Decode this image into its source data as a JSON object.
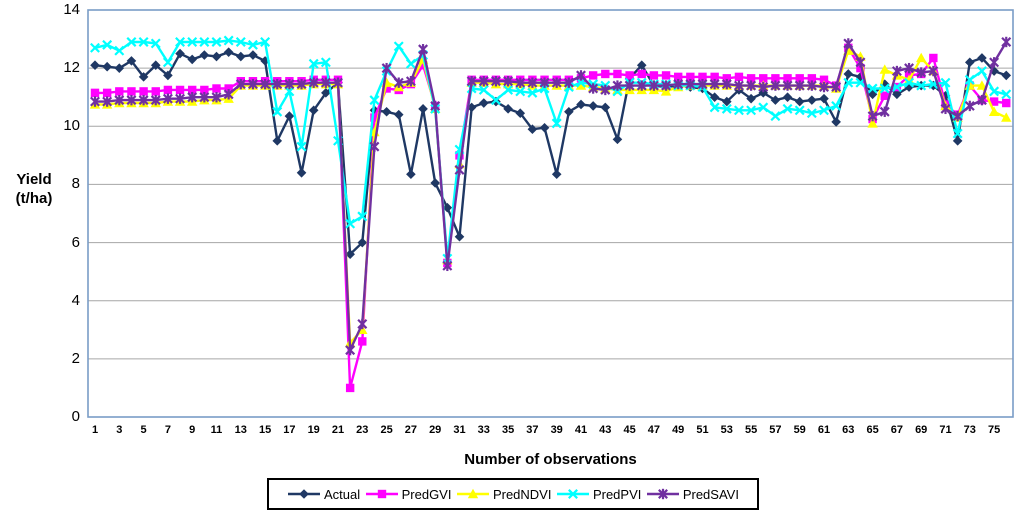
{
  "y_axis": {
    "label_line1": "Yield",
    "label_line2": "(t/ha)",
    "tick_labels": [
      "0",
      "2",
      "4",
      "6",
      "8",
      "10",
      "12",
      "14"
    ],
    "range": [
      0,
      14
    ]
  },
  "x_axis": {
    "title": "Number of observations",
    "tick_labels": [
      "1",
      "3",
      "5",
      "7",
      "9",
      "11",
      "13",
      "15",
      "17",
      "19",
      "21",
      "23",
      "25",
      "27",
      "29",
      "31",
      "33",
      "35",
      "37",
      "39",
      "41",
      "43",
      "45",
      "47",
      "49",
      "51",
      "53",
      "55",
      "57",
      "59",
      "61",
      "63",
      "65",
      "67",
      "69",
      "71",
      "73",
      "75"
    ]
  },
  "legend": {
    "items": [
      {
        "label": "Actual",
        "color": "#1F3864",
        "marker": "diamond"
      },
      {
        "label": "PredGVI",
        "color": "#FF00FF",
        "marker": "square"
      },
      {
        "label": "PredNDVI",
        "color": "#FFFF00",
        "marker": "triangle"
      },
      {
        "label": "PredPVI",
        "color": "#00FFFF",
        "marker": "x"
      },
      {
        "label": "PredSAVI",
        "color": "#7030A0",
        "marker": "star"
      }
    ]
  },
  "colors": {
    "plot_border": "#7A9CC6",
    "gridline": "#A6A6A6",
    "background": "#FFFFFF"
  },
  "chart_data": {
    "type": "line",
    "title": "",
    "xlabel": "Number of observations",
    "ylabel": "Yield (t/ha)",
    "ylim": [
      0,
      14
    ],
    "x": [
      1,
      2,
      3,
      4,
      5,
      6,
      7,
      8,
      9,
      10,
      11,
      12,
      13,
      14,
      15,
      16,
      17,
      18,
      19,
      20,
      21,
      22,
      23,
      24,
      25,
      26,
      27,
      28,
      29,
      30,
      31,
      32,
      33,
      34,
      35,
      36,
      37,
      38,
      39,
      40,
      41,
      42,
      43,
      44,
      45,
      46,
      47,
      48,
      49,
      50,
      51,
      52,
      53,
      54,
      55,
      56,
      57,
      58,
      59,
      60,
      61,
      62,
      63,
      64,
      65,
      66,
      67,
      68,
      69,
      70,
      71,
      72,
      73,
      74,
      75,
      76
    ],
    "grid": true,
    "legend_position": "bottom",
    "series": [
      {
        "name": "Actual",
        "color": "#1F3864",
        "marker": "diamond",
        "values": [
          12.1,
          12.05,
          12.0,
          12.25,
          11.7,
          12.1,
          11.75,
          12.5,
          12.3,
          12.45,
          12.4,
          12.55,
          12.4,
          12.45,
          12.25,
          9.5,
          10.35,
          8.4,
          10.55,
          11.15,
          11.5,
          5.6,
          6.0,
          10.55,
          10.5,
          10.4,
          8.35,
          10.6,
          8.05,
          7.2,
          6.2,
          10.65,
          10.8,
          10.85,
          10.6,
          10.45,
          9.9,
          9.95,
          8.35,
          10.5,
          10.75,
          10.7,
          10.65,
          9.55,
          11.65,
          12.1,
          11.4,
          11.35,
          11.4,
          11.35,
          11.3,
          11.0,
          10.85,
          11.25,
          10.95,
          11.15,
          10.9,
          11.0,
          10.85,
          10.9,
          10.95,
          10.15,
          11.8,
          11.7,
          11.1,
          11.45,
          11.1,
          11.35,
          11.4,
          11.4,
          11.05,
          9.5,
          12.2,
          12.35,
          11.9,
          11.75
        ]
      },
      {
        "name": "PredGVI",
        "color": "#FF00FF",
        "marker": "square",
        "values": [
          11.15,
          11.15,
          11.2,
          11.2,
          11.2,
          11.2,
          11.25,
          11.25,
          11.25,
          11.25,
          11.3,
          11.3,
          11.55,
          11.55,
          11.55,
          11.55,
          11.55,
          11.55,
          11.6,
          11.6,
          11.6,
          1.0,
          2.6,
          10.3,
          11.3,
          11.25,
          11.45,
          12.1,
          10.7,
          5.3,
          9.0,
          11.6,
          11.6,
          11.6,
          11.6,
          11.6,
          11.6,
          11.6,
          11.6,
          11.6,
          11.65,
          11.75,
          11.8,
          11.8,
          11.75,
          11.8,
          11.75,
          11.75,
          11.7,
          11.7,
          11.7,
          11.7,
          11.65,
          11.7,
          11.65,
          11.65,
          11.65,
          11.65,
          11.65,
          11.65,
          11.6,
          11.4,
          12.7,
          12.0,
          10.25,
          11.05,
          11.35,
          11.75,
          11.8,
          12.35,
          10.75,
          10.4,
          11.4,
          10.9,
          10.85,
          10.8
        ]
      },
      {
        "name": "PredNDVI",
        "color": "#FFFF00",
        "marker": "triangle",
        "values": [
          10.75,
          10.75,
          10.8,
          10.8,
          10.8,
          10.8,
          10.85,
          10.85,
          10.85,
          10.9,
          10.9,
          10.95,
          11.4,
          11.4,
          11.4,
          11.4,
          11.4,
          11.4,
          11.45,
          11.45,
          11.45,
          2.55,
          3.0,
          9.8,
          11.5,
          11.35,
          11.5,
          12.3,
          10.6,
          5.4,
          8.7,
          11.5,
          11.5,
          11.45,
          11.45,
          11.45,
          11.4,
          11.4,
          11.4,
          11.4,
          11.4,
          11.35,
          11.3,
          11.25,
          11.25,
          11.25,
          11.25,
          11.2,
          11.35,
          11.4,
          11.4,
          11.4,
          11.4,
          11.4,
          11.4,
          11.4,
          11.4,
          11.4,
          11.4,
          11.4,
          11.4,
          11.3,
          12.6,
          12.4,
          10.1,
          11.95,
          11.75,
          11.6,
          12.35,
          11.9,
          10.7,
          10.3,
          11.4,
          11.4,
          10.5,
          10.3
        ]
      },
      {
        "name": "PredPVI",
        "color": "#00FFFF",
        "marker": "x",
        "values": [
          12.7,
          12.8,
          12.6,
          12.9,
          12.9,
          12.85,
          12.2,
          12.9,
          12.9,
          12.9,
          12.9,
          12.95,
          12.9,
          12.8,
          12.9,
          10.5,
          11.2,
          9.3,
          12.15,
          12.2,
          9.5,
          6.65,
          6.9,
          10.9,
          11.9,
          12.75,
          12.15,
          12.45,
          10.6,
          5.45,
          9.2,
          11.3,
          11.25,
          10.9,
          11.25,
          11.2,
          11.15,
          11.3,
          10.1,
          11.35,
          11.5,
          11.45,
          11.4,
          11.2,
          11.5,
          11.5,
          11.45,
          11.45,
          11.4,
          11.4,
          11.35,
          10.65,
          10.6,
          10.55,
          10.55,
          10.65,
          10.35,
          10.6,
          10.55,
          10.45,
          10.55,
          10.7,
          11.5,
          11.5,
          11.3,
          11.3,
          11.35,
          11.5,
          11.4,
          11.45,
          11.5,
          9.75,
          11.6,
          11.9,
          11.2,
          11.1
        ]
      },
      {
        "name": "PredSAVI",
        "color": "#7030A0",
        "marker": "star",
        "values": [
          10.85,
          10.85,
          10.9,
          10.9,
          10.9,
          10.9,
          10.95,
          10.95,
          11.0,
          11.0,
          11.0,
          11.1,
          11.45,
          11.45,
          11.45,
          11.45,
          11.45,
          11.45,
          11.5,
          11.5,
          11.5,
          2.3,
          3.2,
          9.3,
          12.0,
          11.5,
          11.55,
          12.65,
          10.7,
          5.2,
          8.5,
          11.55,
          11.55,
          11.55,
          11.55,
          11.5,
          11.5,
          11.5,
          11.5,
          11.5,
          11.75,
          11.3,
          11.25,
          11.4,
          11.4,
          11.4,
          11.4,
          11.4,
          11.45,
          11.45,
          11.45,
          11.45,
          11.45,
          11.4,
          11.4,
          11.35,
          11.4,
          11.4,
          11.4,
          11.4,
          11.35,
          11.35,
          12.85,
          12.2,
          10.35,
          10.5,
          11.9,
          12.0,
          11.85,
          11.9,
          10.6,
          10.35,
          10.7,
          10.9,
          12.2,
          12.9
        ]
      }
    ]
  }
}
